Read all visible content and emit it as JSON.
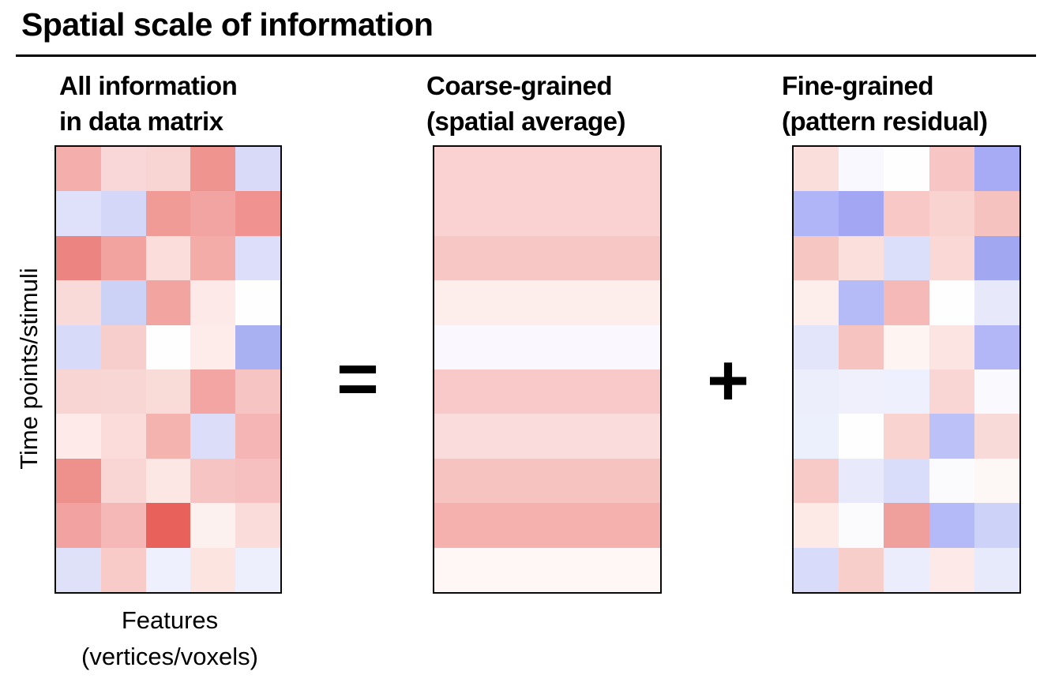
{
  "title": "Spatial scale of information",
  "background_color": "#ffffff",
  "text_color": "#000000",
  "panels": {
    "all": {
      "heading_line1": "All information",
      "heading_line2": "in data matrix"
    },
    "coarse": {
      "heading_line1": "Coarse-grained",
      "heading_line2": "(spatial average)"
    },
    "fine": {
      "heading_line1": "Fine-grained",
      "heading_line2": "(pattern residual)"
    }
  },
  "operators": {
    "equals": "=",
    "plus": "+"
  },
  "axes": {
    "y_label": "Time points/stimuli",
    "x_label_line1": "Features",
    "x_label_line2": "(vertices/voxels)"
  },
  "chart_data": [
    {
      "type": "heatmap",
      "name": "all-information-data-matrix",
      "title": "All information in data matrix",
      "rows": 10,
      "cols": 5,
      "xlabel": "Features (vertices/voxels)",
      "ylabel": "Time points/stimuli",
      "colormap": "diverging blue-white-red (red = positive, blue = negative, white = 0)",
      "values_est": [
        [
          0.4,
          0.2,
          0.21,
          0.56,
          -0.2
        ],
        [
          -0.16,
          -0.22,
          0.51,
          0.45,
          0.57
        ],
        [
          0.63,
          0.46,
          0.15,
          0.41,
          -0.18
        ],
        [
          0.18,
          -0.26,
          0.45,
          0.08,
          0.0
        ],
        [
          -0.21,
          0.25,
          0.0,
          0.07,
          -0.42
        ],
        [
          0.2,
          0.19,
          0.2,
          0.43,
          0.3
        ],
        [
          0.08,
          0.16,
          0.37,
          -0.18,
          0.36
        ],
        [
          0.58,
          0.2,
          0.1,
          0.29,
          0.31
        ],
        [
          0.46,
          0.35,
          0.8,
          0.05,
          0.17
        ],
        [
          -0.16,
          0.29,
          -0.07,
          0.15,
          -0.08
        ]
      ],
      "cell_colors": [
        [
          "#f4aeab",
          "#f9d7d8",
          "#f8d5d2",
          "#f0948f",
          "#d8daf8"
        ],
        [
          "#dfe0fa",
          "#d4d7f7",
          "#f19b97",
          "#f2a4a2",
          "#f0928f"
        ],
        [
          "#ec8581",
          "#f2a39f",
          "#fbdedb",
          "#f4aca9",
          "#dcdefa"
        ],
        [
          "#fadad8",
          "#ccd1f6",
          "#f2a4a1",
          "#fdeae8",
          "#fefeff"
        ],
        [
          "#d7daf9",
          "#f8cecc",
          "#fffeff",
          "#fdecea",
          "#aab1f2"
        ],
        [
          "#f8d4d2",
          "#f8d6d4",
          "#f9dbd8",
          "#f2a5a2",
          "#f6c4c3"
        ],
        [
          "#fdeae9",
          "#fbdcda",
          "#f5b3b0",
          "#dcdef9",
          "#f4b5b4"
        ],
        [
          "#ee918d",
          "#f9d6d4",
          "#fce7e4",
          "#f6c4c3",
          "#f5c0bf"
        ],
        [
          "#f2a3a1",
          "#f5b8b6",
          "#e8625b",
          "#fdf1ef",
          "#fadcda"
        ],
        [
          "#dfe1f9",
          "#f8cbc9",
          "#eef0fd",
          "#fce4e0",
          "#edeffc"
        ]
      ]
    },
    {
      "type": "heatmap",
      "name": "coarse-grained-spatial-average",
      "title": "Coarse-grained (spatial average)",
      "rows": 10,
      "cols": 5,
      "note": "each row is uniform: the spatial mean of the corresponding row of the data matrix",
      "colormap": "diverging blue-white-red (red = positive, blue = negative, white = 0)",
      "row_values_est": [
        0.23,
        0.23,
        0.29,
        0.09,
        -0.06,
        0.26,
        0.16,
        0.3,
        0.37,
        0.03
      ],
      "row_colors": [
        "#f9d2d1",
        "#f9d2d1",
        "#f7c7c6",
        "#fdeeec",
        "#faf8fe",
        "#f8c9c8",
        "#fbdcdc",
        "#f7c3c1",
        "#f5b1ae",
        "#fef7f6"
      ]
    },
    {
      "type": "heatmap",
      "name": "fine-grained-pattern-residual",
      "title": "Fine-grained (pattern residual)",
      "rows": 10,
      "cols": 5,
      "note": "residual after subtracting the row-wise spatial average",
      "colormap": "diverging blue-white-red (red = positive, blue = negative, white = 0)",
      "values_est": [
        [
          0.17,
          -0.03,
          -0.02,
          0.33,
          -0.43
        ],
        [
          -0.39,
          -0.45,
          0.28,
          0.22,
          0.34
        ],
        [
          0.34,
          0.17,
          -0.14,
          0.12,
          -0.47
        ],
        [
          0.09,
          -0.35,
          0.36,
          -0.01,
          -0.09
        ],
        [
          -0.15,
          0.31,
          0.06,
          0.13,
          -0.36
        ],
        [
          -0.06,
          -0.07,
          -0.06,
          0.17,
          0.04
        ],
        [
          -0.08,
          0.0,
          0.21,
          -0.34,
          0.2
        ],
        [
          0.28,
          -0.1,
          -0.2,
          -0.01,
          0.01
        ],
        [
          0.09,
          -0.02,
          0.43,
          -0.32,
          -0.2
        ],
        [
          -0.19,
          0.26,
          -0.1,
          0.12,
          -0.11
        ]
      ],
      "cell_colors": [
        [
          "#fadedb",
          "#f8f8fe",
          "#fffeff",
          "#f7c6c4",
          "#a7aaf5"
        ],
        [
          "#b0b5f7",
          "#a3a6f3",
          "#f7c8c6",
          "#f9d3d0",
          "#f5c2c0"
        ],
        [
          "#f6c6c2",
          "#fadfdc",
          "#dcdffa",
          "#f9d8d6",
          "#a2a7f2"
        ],
        [
          "#fdeeec",
          "#b5bbf7",
          "#f5bab7",
          "#fffeff",
          "#e7e9fb"
        ],
        [
          "#e3e6fb",
          "#f6c3c0",
          "#fef4f2",
          "#fbe4e2",
          "#b3b7f7"
        ],
        [
          "#eceefb",
          "#f0f0fd",
          "#eff0fd",
          "#f9d6d3",
          "#f9f9fe"
        ],
        [
          "#eceffc",
          "#fffeff",
          "#f8d3d0",
          "#bcc1f8",
          "#f8dad8"
        ],
        [
          "#f7c9c7",
          "#e8eafc",
          "#d9ddfa",
          "#fbfbfe",
          "#fdf7f5"
        ],
        [
          "#fdeae7",
          "#fbfbfe",
          "#f0a09c",
          "#b4baf7",
          "#cdd2f9"
        ],
        [
          "#d8dcfa",
          "#f8cecb",
          "#ebedfc",
          "#fdeae8",
          "#e7eafb"
        ]
      ]
    }
  ]
}
